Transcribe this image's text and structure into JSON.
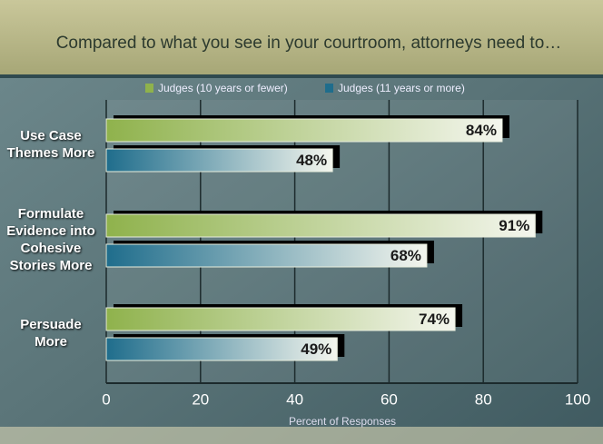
{
  "chart_data": {
    "type": "bar",
    "orientation": "horizontal",
    "title": "Compared to what you see in your courtroom, attorneys need to…",
    "x_label": "Percent of Responses",
    "categories": [
      "Use Case Themes More",
      "Formulate Evidence into Cohesive Stories More",
      "Persuade More"
    ],
    "series": [
      {
        "name": "Judges (10 years or fewer)",
        "color": "#8fb24c",
        "values": [
          84,
          91,
          74
        ],
        "value_labels": [
          "84%",
          "91%",
          "74%"
        ]
      },
      {
        "name": "Judges (11 years or more)",
        "color": "#1f6d8c",
        "values": [
          48,
          68,
          49
        ],
        "value_labels": [
          "48%",
          "68%",
          "49%"
        ]
      }
    ],
    "xlim": [
      0,
      100
    ],
    "xticks": [
      0,
      20,
      40,
      60,
      80,
      100
    ],
    "grid": true
  }
}
